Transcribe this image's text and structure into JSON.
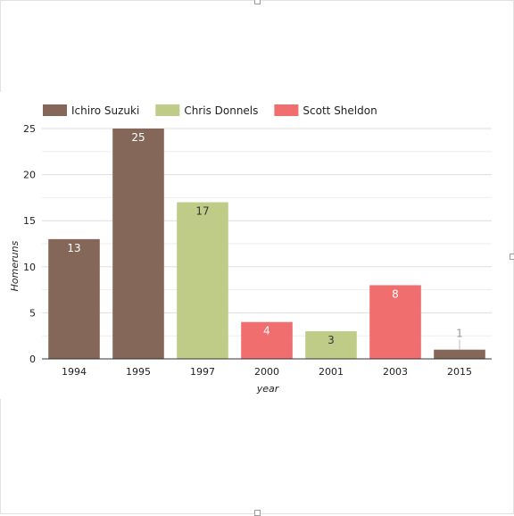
{
  "chart_data": {
    "type": "bar",
    "categories": [
      "1994",
      "1995",
      "1997",
      "2000",
      "2001",
      "2003",
      "2015"
    ],
    "values": [
      13,
      25,
      17,
      4,
      3,
      8,
      1
    ],
    "bar_series": [
      "Ichiro Suzuki",
      "Ichiro Suzuki",
      "Chris Donnels",
      "Scott Sheldon",
      "Chris Donnels",
      "Scott Sheldon",
      "Ichiro Suzuki"
    ],
    "series": [
      {
        "name": "Ichiro Suzuki",
        "color": "#85675a"
      },
      {
        "name": "Chris Donnels",
        "color": "#bfcc88"
      },
      {
        "name": "Scott Sheldon",
        "color": "#f06e6e"
      }
    ],
    "title": "",
    "xlabel": "year",
    "ylabel": "Homeruns",
    "ylim": [
      0,
      25
    ],
    "yticks": [
      "0",
      "5",
      "10",
      "15",
      "20",
      "25"
    ],
    "grid": true,
    "legend_position": "top-left"
  }
}
